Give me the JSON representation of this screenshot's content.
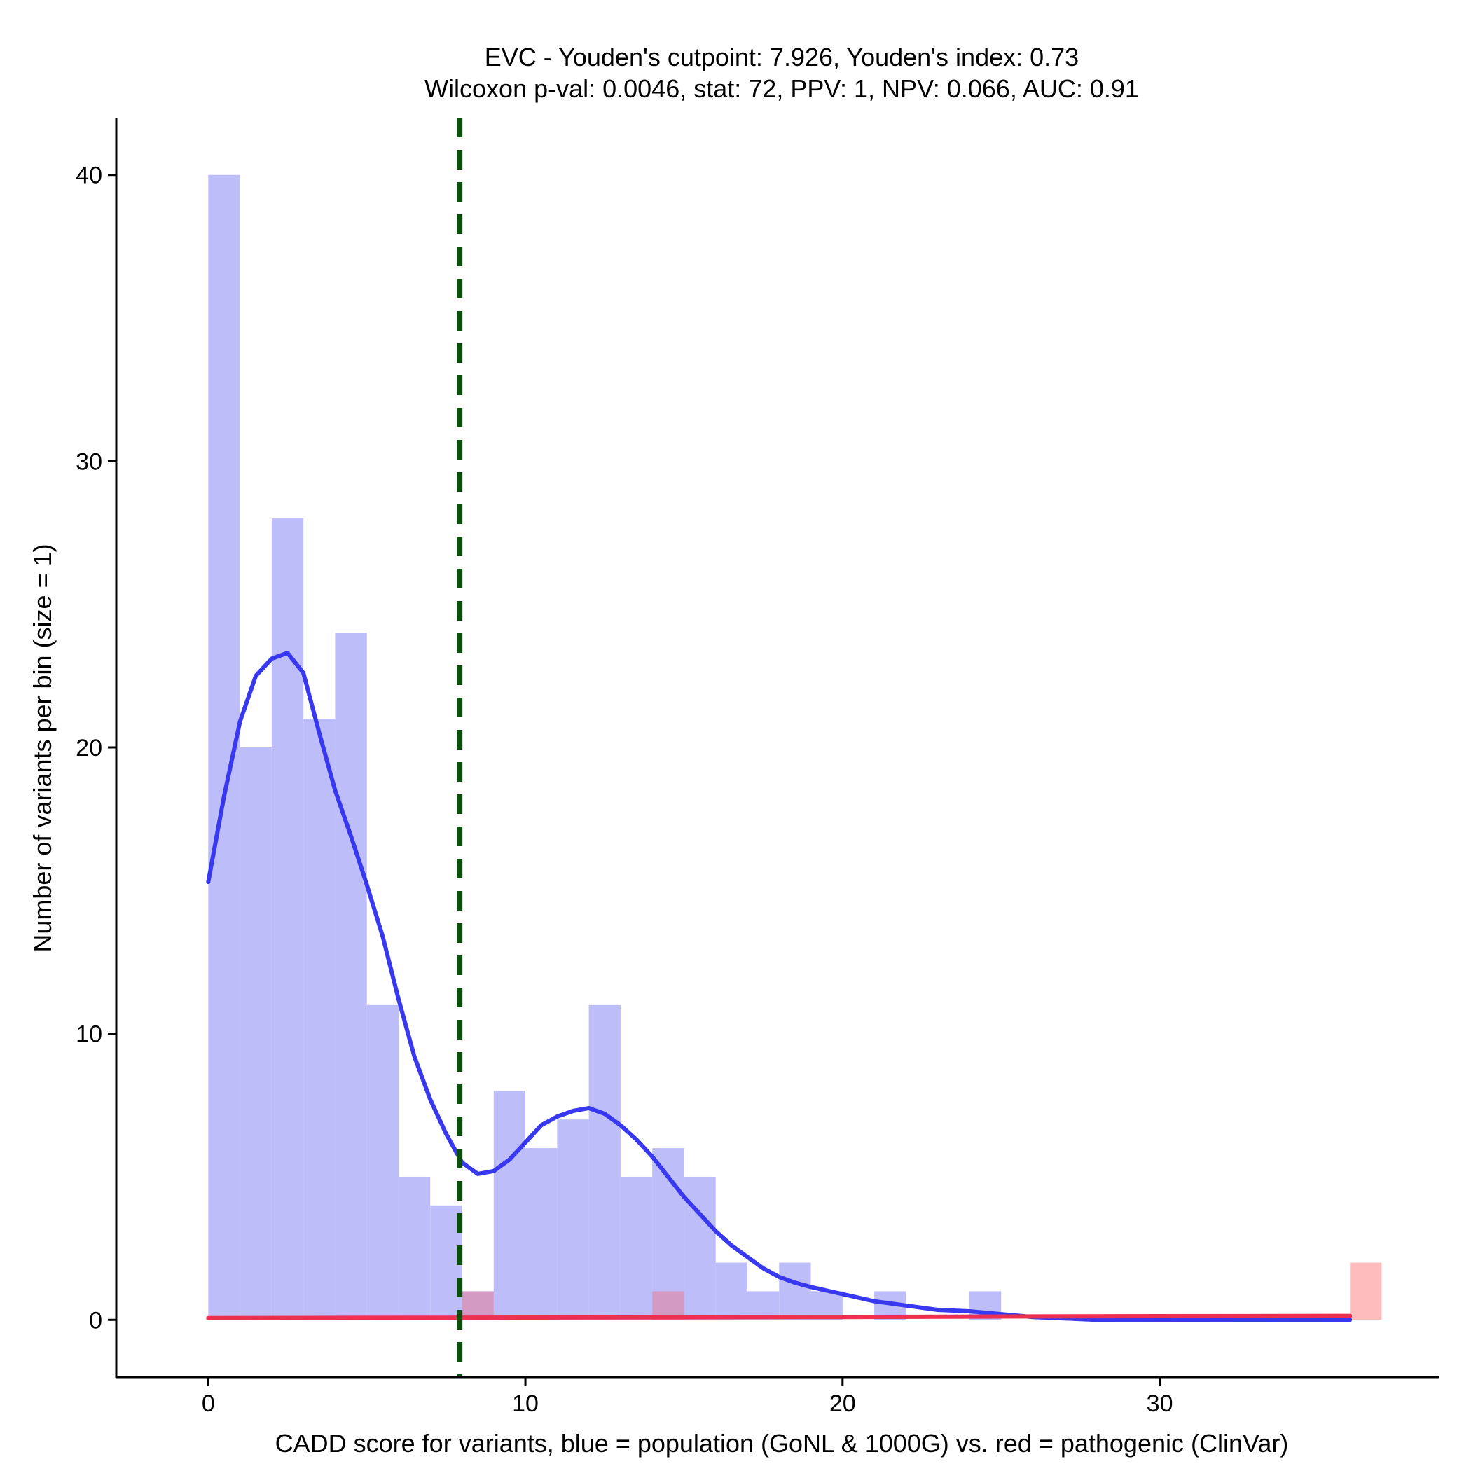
{
  "chart_data": {
    "type": "bar",
    "title_line1": "EVC - Youden's cutpoint: 7.926, Youden's index: 0.73",
    "title_line2": "Wilcoxon p-val: 0.0046, stat: 72, PPV: 1, NPV: 0.066, AUC: 0.91",
    "xlabel": "CADD score for variants, blue = population (GoNL & 1000G) vs. red = pathogenic (ClinVar)",
    "ylabel": "Number of variants per bin (size = 1)",
    "xlim": [
      -2.9,
      38.8
    ],
    "ylim": [
      -2,
      42
    ],
    "xticks": [
      0,
      10,
      20,
      30
    ],
    "yticks": [
      0,
      10,
      20,
      30,
      40
    ],
    "bin_width": 1,
    "cutpoint": 7.926,
    "colors": {
      "population": "#bdbdf9",
      "pathogenic": "#ffbcbc",
      "overlap": "#d39bc4",
      "population_density": "#3838f0",
      "pathogenic_density": "#ee3050",
      "cutpoint": "#0a4f0a"
    },
    "series": [
      {
        "name": "population (GoNL & 1000G)",
        "bins": [
          [
            0,
            40
          ],
          [
            1,
            20
          ],
          [
            2,
            28
          ],
          [
            3,
            21
          ],
          [
            4,
            24
          ],
          [
            5,
            11
          ],
          [
            6,
            5
          ],
          [
            7,
            4
          ],
          [
            8,
            1
          ],
          [
            9,
            8
          ],
          [
            10,
            6
          ],
          [
            11,
            7
          ],
          [
            12,
            11
          ],
          [
            13,
            5
          ],
          [
            14,
            6
          ],
          [
            15,
            5
          ],
          [
            16,
            2
          ],
          [
            17,
            1
          ],
          [
            18,
            2
          ],
          [
            19,
            1
          ],
          [
            21,
            1
          ],
          [
            24,
            1
          ]
        ],
        "density_curve": [
          [
            0,
            15.3
          ],
          [
            0.5,
            18.3
          ],
          [
            1,
            20.9
          ],
          [
            1.5,
            22.5
          ],
          [
            2,
            23.1
          ],
          [
            2.5,
            23.3
          ],
          [
            3,
            22.6
          ],
          [
            3.5,
            20.5
          ],
          [
            4,
            18.5
          ],
          [
            4.5,
            16.9
          ],
          [
            5,
            15.2
          ],
          [
            5.5,
            13.4
          ],
          [
            6,
            11.2
          ],
          [
            6.5,
            9.2
          ],
          [
            7,
            7.7
          ],
          [
            7.5,
            6.5
          ],
          [
            8,
            5.5
          ],
          [
            8.5,
            5.1
          ],
          [
            9,
            5.2
          ],
          [
            9.5,
            5.6
          ],
          [
            10,
            6.2
          ],
          [
            10.5,
            6.8
          ],
          [
            11,
            7.1
          ],
          [
            11.5,
            7.3
          ],
          [
            12,
            7.4
          ],
          [
            12.5,
            7.2
          ],
          [
            13,
            6.8
          ],
          [
            13.5,
            6.3
          ],
          [
            14,
            5.7
          ],
          [
            14.5,
            5.0
          ],
          [
            15,
            4.3
          ],
          [
            15.5,
            3.7
          ],
          [
            16,
            3.1
          ],
          [
            16.5,
            2.6
          ],
          [
            17,
            2.2
          ],
          [
            17.5,
            1.8
          ],
          [
            18,
            1.5
          ],
          [
            18.5,
            1.3
          ],
          [
            19,
            1.15
          ],
          [
            20,
            0.9
          ],
          [
            21,
            0.65
          ],
          [
            22,
            0.5
          ],
          [
            23,
            0.35
          ],
          [
            24,
            0.3
          ],
          [
            25,
            0.2
          ],
          [
            26,
            0.1
          ],
          [
            27,
            0.05
          ],
          [
            28,
            0
          ],
          [
            36,
            0
          ]
        ]
      },
      {
        "name": "pathogenic (ClinVar)",
        "bins": [
          [
            8,
            1
          ],
          [
            14,
            1
          ],
          [
            36,
            2
          ]
        ],
        "density_curve": [
          [
            0,
            0.06
          ],
          [
            10,
            0.08
          ],
          [
            20,
            0.1
          ],
          [
            26,
            0.12
          ],
          [
            30,
            0.13
          ],
          [
            36,
            0.14
          ]
        ]
      }
    ]
  }
}
